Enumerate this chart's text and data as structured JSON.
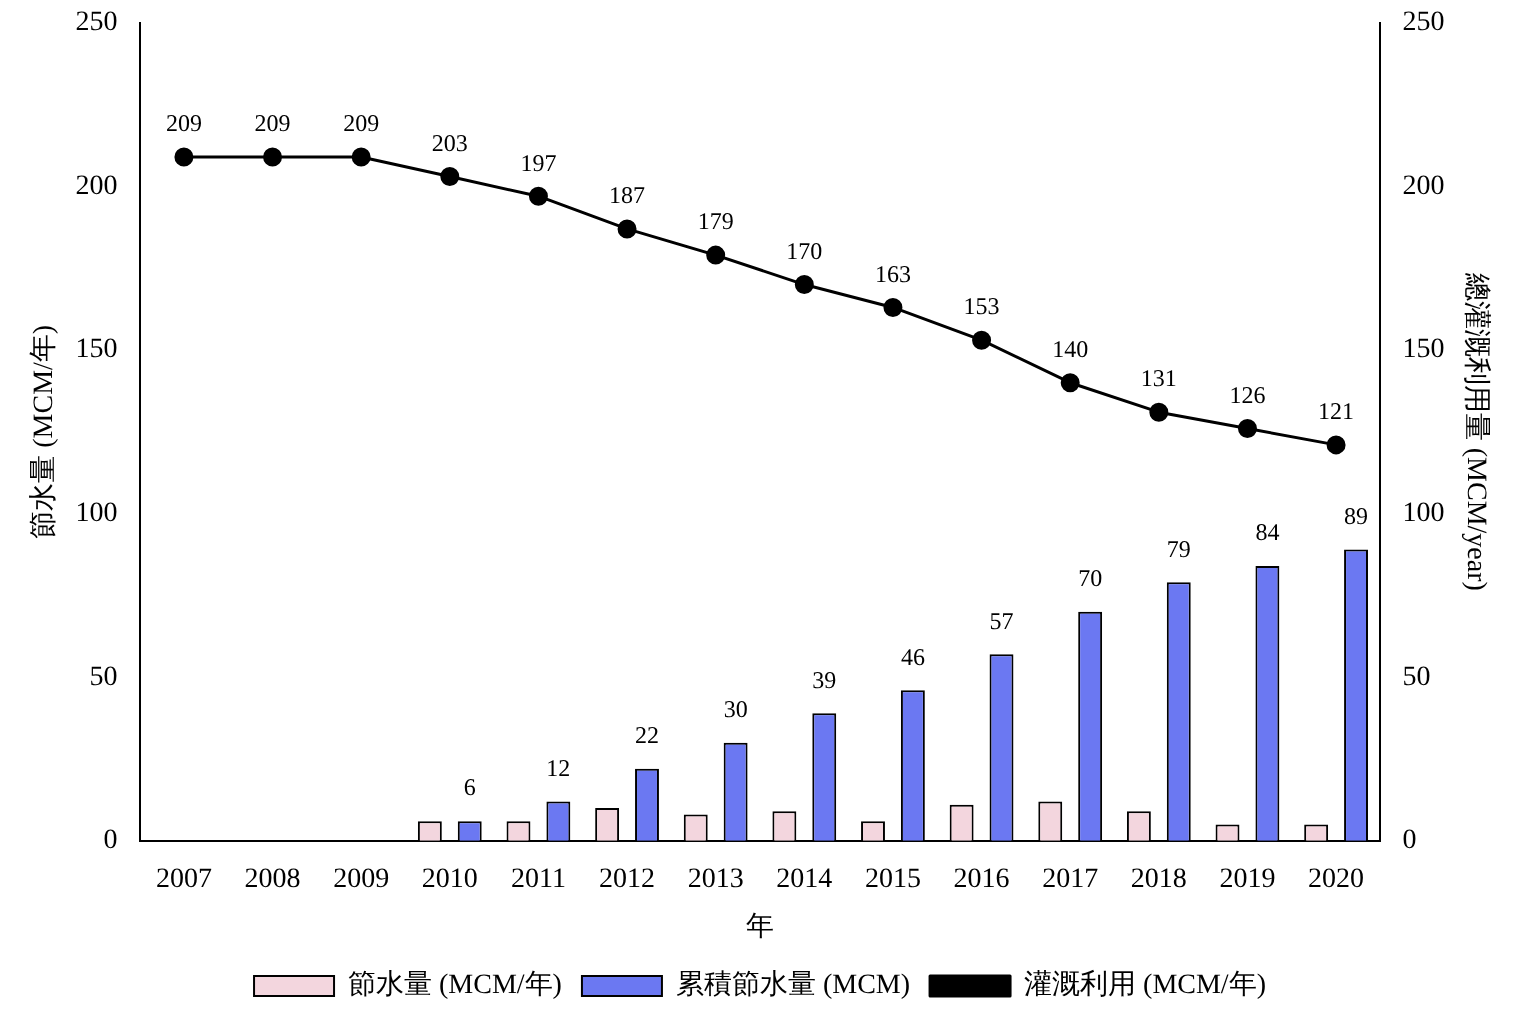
{
  "chart_data": {
    "type": "bar",
    "xlabel": "年",
    "ylabel": "節水量 (MCM/年)",
    "y2label": "總灌溉利用量 (MCM/year)",
    "categories": [
      "2007",
      "2008",
      "2009",
      "2010",
      "2011",
      "2012",
      "2013",
      "2014",
      "2015",
      "2016",
      "2017",
      "2018",
      "2019",
      "2020"
    ],
    "series": [
      {
        "name": "節水量 (MCM/年)",
        "color": "#f3d6de",
        "values": [
          null,
          null,
          null,
          6,
          6,
          10,
          8,
          9,
          6,
          11,
          12,
          9,
          5,
          5
        ]
      },
      {
        "name": "累積節水量 (MCM)",
        "color": "#6b78f2",
        "values": [
          null,
          null,
          null,
          6,
          12,
          22,
          30,
          39,
          46,
          57,
          70,
          79,
          84,
          89
        ],
        "value_labels": [
          null,
          null,
          null,
          "6",
          "12",
          "22",
          "30",
          "39",
          "46",
          "57",
          "70",
          "79",
          "84",
          "89"
        ]
      },
      {
        "name": "灌溉利用 (MCM/年)",
        "type": "line",
        "color": "#000000",
        "marker": "circle",
        "values": [
          209,
          209,
          209,
          203,
          197,
          187,
          179,
          170,
          163,
          153,
          140,
          131,
          126,
          121
        ],
        "value_labels": [
          "209",
          "209",
          "209",
          "203",
          "197",
          "187",
          "179",
          "170",
          "163",
          "153",
          "140",
          "131",
          "126",
          "121"
        ]
      }
    ],
    "ylim": [
      0,
      250
    ],
    "yticks": [
      0,
      50,
      100,
      150,
      200,
      250
    ],
    "y2lim": [
      0,
      250
    ],
    "y2ticks": [
      0,
      50,
      100,
      150,
      200,
      250
    ],
    "grid": false,
    "legend": "bottom"
  }
}
